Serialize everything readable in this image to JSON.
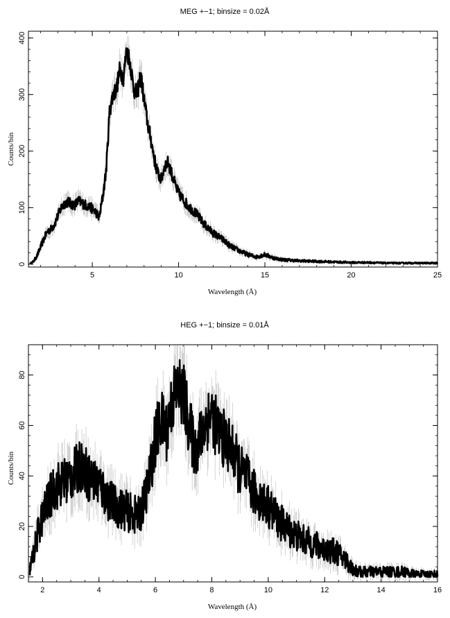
{
  "chart_data": [
    {
      "type": "line",
      "title": "MEG +−1; binsize = 0.02Å",
      "xlabel": "Wavelength (Å)",
      "ylabel": "Counts/bin",
      "xlim": [
        1.3,
        25
      ],
      "ylim": [
        -5,
        412
      ],
      "xticks": [
        5,
        10,
        15,
        20,
        25
      ],
      "yticks": [
        0,
        100,
        200,
        300,
        400
      ],
      "grid": false,
      "error_bars": true,
      "colors": {
        "line": "#000000",
        "errors": "#bfbfbf"
      },
      "series": [
        {
          "x": [
            1.4,
            1.6,
            1.8,
            2.0,
            2.2,
            2.4,
            2.6,
            2.8,
            3.0,
            3.2,
            3.4,
            3.6,
            3.8,
            4.0,
            4.2,
            4.4,
            4.6,
            4.8,
            5.0,
            5.2,
            5.4,
            5.6,
            5.8,
            6.0,
            6.2,
            6.4,
            6.6,
            6.8,
            7.0,
            7.2,
            7.4,
            7.6,
            7.8,
            8.0,
            8.2,
            8.4,
            8.6,
            8.8,
            9.0,
            9.2,
            9.4,
            9.6,
            9.8,
            10.0,
            10.5,
            11.0,
            11.5,
            12.0,
            12.5,
            13.0,
            13.5,
            14.0,
            14.5,
            15.0,
            15.5,
            16.0,
            17.0,
            18.0,
            19.0,
            20.0,
            21.0,
            22.0,
            23.0,
            24.0,
            25.0
          ],
          "y": [
            1,
            5,
            15,
            30,
            45,
            58,
            62,
            70,
            85,
            100,
            108,
            110,
            106,
            105,
            112,
            108,
            105,
            102,
            98,
            92,
            82,
            118,
            165,
            270,
            300,
            310,
            345,
            330,
            380,
            355,
            310,
            300,
            335,
            290,
            250,
            220,
            185,
            160,
            150,
            175,
            180,
            160,
            140,
            125,
            105,
            90,
            70,
            55,
            45,
            32,
            24,
            17,
            13,
            17,
            11,
            8,
            6,
            5,
            4,
            3,
            3,
            2,
            2,
            2,
            2
          ]
        }
      ]
    },
    {
      "type": "line",
      "title": "HEG +−1; binsize = 0.01Å",
      "xlabel": "Wavelength (Å)",
      "ylabel": "Counts/bin",
      "xlim": [
        1.5,
        16
      ],
      "ylim": [
        -2,
        92
      ],
      "xticks": [
        2,
        4,
        6,
        8,
        10,
        12,
        14,
        16
      ],
      "yticks": [
        0,
        20,
        40,
        60,
        80
      ],
      "grid": false,
      "error_bars": true,
      "colors": {
        "line": "#000000",
        "errors": "#bfbfbf"
      },
      "series": [
        {
          "x": [
            1.55,
            1.7,
            1.85,
            2.0,
            2.2,
            2.4,
            2.6,
            2.8,
            3.0,
            3.2,
            3.4,
            3.6,
            3.8,
            4.0,
            4.2,
            4.4,
            4.6,
            4.8,
            5.0,
            5.2,
            5.4,
            5.6,
            5.8,
            6.0,
            6.2,
            6.4,
            6.6,
            6.8,
            7.0,
            7.2,
            7.4,
            7.6,
            7.8,
            8.0,
            8.2,
            8.4,
            8.6,
            8.8,
            9.0,
            9.2,
            9.4,
            9.6,
            9.8,
            10.0,
            10.4,
            10.8,
            11.2,
            11.6,
            12.0,
            12.4,
            12.8,
            13.0,
            13.2,
            13.6,
            14.0,
            14.4,
            14.8,
            15.2,
            15.6,
            16.0
          ],
          "y": [
            3,
            10,
            18,
            24,
            30,
            35,
            37,
            38,
            40,
            42,
            45,
            40,
            38,
            37,
            33,
            30,
            28,
            27,
            26,
            25,
            24,
            30,
            40,
            55,
            62,
            58,
            70,
            75,
            72,
            60,
            50,
            55,
            62,
            65,
            58,
            55,
            52,
            48,
            42,
            40,
            35,
            32,
            30,
            28,
            22,
            18,
            15,
            13,
            11,
            10,
            6,
            3,
            2,
            2,
            2,
            2,
            2,
            1,
            1,
            1
          ]
        }
      ]
    }
  ]
}
